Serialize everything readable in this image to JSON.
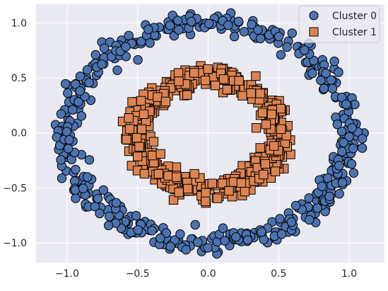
{
  "chart_data": {
    "type": "scatter",
    "title": "",
    "xlabel": "",
    "ylabel": "",
    "xlim": [
      -1.22,
      1.25
    ],
    "ylim": [
      -1.18,
      1.17
    ],
    "xticks": [
      {
        "value": -1.0,
        "label": "−1.0"
      },
      {
        "value": -0.5,
        "label": "−0.5"
      },
      {
        "value": 0.0,
        "label": "0.0"
      },
      {
        "value": 0.5,
        "label": "0.5"
      },
      {
        "value": 1.0,
        "label": "1.0"
      }
    ],
    "yticks": [
      {
        "value": 1.0,
        "label": "1.0"
      },
      {
        "value": 0.5,
        "label": "0.5"
      },
      {
        "value": 0.0,
        "label": "0.0"
      },
      {
        "value": -0.5,
        "label": "−0.5"
      },
      {
        "value": -1.0,
        "label": "−1.0"
      }
    ],
    "grid": true,
    "legend_position": "top-right",
    "series": [
      {
        "name": "Cluster 0",
        "marker": "circle",
        "color": "#4c72b0",
        "ring": {
          "center": [
            0,
            0
          ],
          "radius": 1.0,
          "noise": 0.05,
          "count": 500
        }
      },
      {
        "name": "Cluster 1",
        "marker": "square",
        "color": "#dd8452",
        "ring": {
          "center": [
            0,
            0
          ],
          "radius": 0.5,
          "noise": 0.05,
          "count": 500
        }
      }
    ],
    "colors": {
      "background": "#eaeaf2",
      "grid": "#ffffff",
      "marker_edge": "#000000",
      "text": "#262626"
    }
  }
}
